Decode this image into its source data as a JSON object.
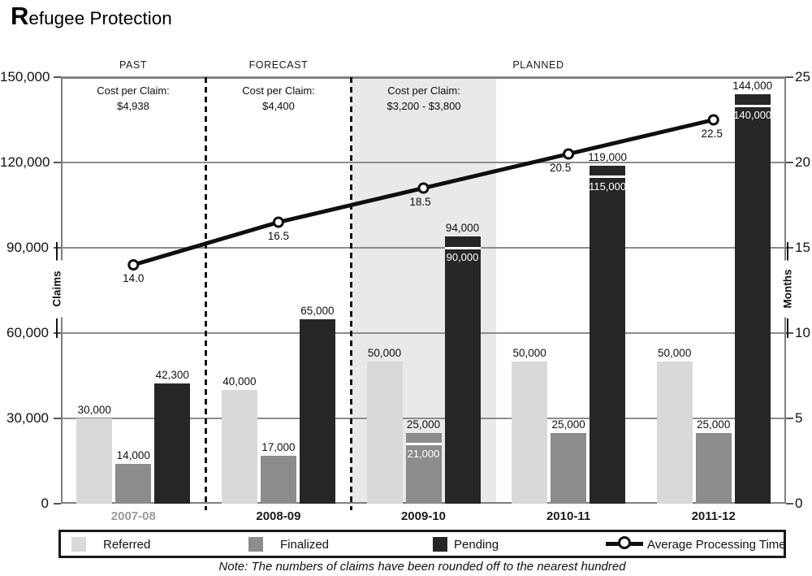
{
  "title": {
    "initial": "R",
    "rest": "efugee Protection"
  },
  "sections": [
    {
      "label": "PAST"
    },
    {
      "label": "FORECAST"
    },
    {
      "label": "PLANNED"
    }
  ],
  "annotations": [
    {
      "line1": "Cost per Claim:",
      "line2": "$4,938"
    },
    {
      "line1": "Cost per Claim:",
      "line2": "$4,400"
    },
    {
      "line1": "Cost per Claim:",
      "line2": "$3,200 - $3,800"
    }
  ],
  "legend": {
    "items": [
      {
        "key": "referred",
        "label": "Referred"
      },
      {
        "key": "finalized",
        "label": "Finalized"
      },
      {
        "key": "pending",
        "label": "Pending"
      },
      {
        "key": "apt",
        "label": "Average Processing Time"
      }
    ]
  },
  "note": "Note: The numbers of claims have been rounded off to the nearest hundred",
  "chart_data": {
    "type": "bar+line",
    "categories": [
      "2007-08",
      "2008-09",
      "2009-10",
      "2010-11",
      "2011-12"
    ],
    "series": [
      {
        "name": "Referred",
        "type": "bar",
        "color": "#d9d9d9",
        "values": [
          30000,
          40000,
          50000,
          50000,
          50000
        ],
        "labels": [
          "30,000",
          "40,000",
          "50,000",
          "50,000",
          "50,000"
        ]
      },
      {
        "name": "Finalized",
        "type": "bar",
        "color": "#8c8c8c",
        "values": [
          14000,
          17000,
          25000,
          25000,
          25000
        ],
        "labels": [
          "14,000",
          "17,000",
          "25,000",
          "25,000",
          "25,000"
        ],
        "inner_values": [
          null,
          null,
          21000,
          null,
          null
        ],
        "inner_labels": [
          null,
          null,
          "21,000",
          null,
          null
        ]
      },
      {
        "name": "Pending",
        "type": "bar",
        "color": "#262626",
        "values": [
          42300,
          65000,
          94000,
          119000,
          144000
        ],
        "labels": [
          "42,300",
          "65,000",
          "94,000",
          "119,000",
          "144,000"
        ],
        "inner_values": [
          null,
          null,
          90000,
          115000,
          140000
        ],
        "inner_labels": [
          null,
          null,
          "90,000",
          "115,000",
          "140,000"
        ]
      },
      {
        "name": "Average Processing Time",
        "type": "line",
        "color": "#0f0f0f",
        "axis": "right",
        "values": [
          14.0,
          16.5,
          18.5,
          20.5,
          22.5
        ],
        "labels": [
          "14.0",
          "16.5",
          "18.5",
          "20.5",
          "22.5"
        ]
      }
    ],
    "left_axis": {
      "title": "Claims",
      "min": 0,
      "max": 150000,
      "ticks": [
        {
          "v": 0,
          "label": "0"
        },
        {
          "v": 30000,
          "label": "30,000"
        },
        {
          "v": 60000,
          "label": "60,000"
        },
        {
          "v": 90000,
          "label": "90,000"
        },
        {
          "v": 120000,
          "label": "120,000"
        },
        {
          "v": 150000,
          "label": "150,000"
        }
      ]
    },
    "right_axis": {
      "title": "Months",
      "min": 0,
      "max": 25,
      "ticks": [
        {
          "v": 0,
          "label": "0"
        },
        {
          "v": 5,
          "label": "5"
        },
        {
          "v": 10,
          "label": "10"
        },
        {
          "v": 15,
          "label": "15"
        },
        {
          "v": 20,
          "label": "20"
        },
        {
          "v": 25,
          "label": "25"
        }
      ]
    },
    "layout": {
      "highlight_category": 2,
      "highlight_color": "#e9e9e9",
      "dashed_boundaries": [
        1,
        2
      ],
      "muted_category": 0,
      "muted_color": "#9b9b9b",
      "grid_color": "#8c8c8c",
      "frame_color": "#7f7f7f",
      "legend_position": "bottom"
    }
  }
}
